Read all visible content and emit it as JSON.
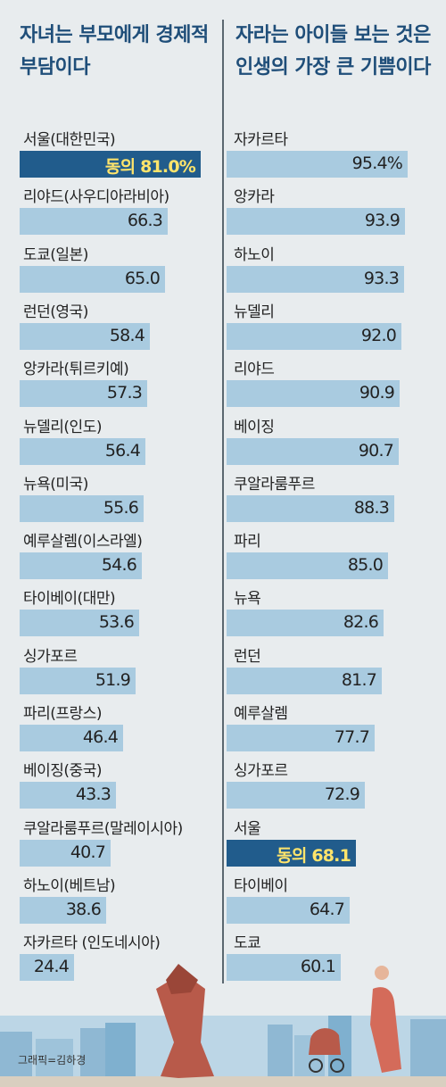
{
  "chart_data": [
    {
      "type": "bar",
      "title": "자녀는 부모에게 경제적 부담이다",
      "categories": [
        "서울(대한민국)",
        "리야드(사우디아라비아)",
        "도쿄(일본)",
        "런던(영국)",
        "앙카라(튀르키예)",
        "뉴델리(인도)",
        "뉴욕(미국)",
        "예루살렘(이스라엘)",
        "타이베이(대만)",
        "싱가포르",
        "파리(프랑스)",
        "베이징(중국)",
        "쿠알라룸푸르(말레이시아)",
        "하노이(베트남)",
        "자카르타 (인도네시아)"
      ],
      "values": [
        81.0,
        66.3,
        65.0,
        58.4,
        57.3,
        56.4,
        55.6,
        54.6,
        53.6,
        51.9,
        46.4,
        43.3,
        40.7,
        38.6,
        24.4
      ],
      "value_labels": [
        "동의 81.0%",
        "66.3",
        "65.0",
        "58.4",
        "57.3",
        "56.4",
        "55.6",
        "54.6",
        "53.6",
        "51.9",
        "46.4",
        "43.3",
        "40.7",
        "38.6",
        "24.4"
      ],
      "highlight_index": 0,
      "xlim": [
        0,
        100
      ],
      "color": "#a9cbe0",
      "highlight_color": "#215c8c",
      "highlight_text_color": "#ffe46b"
    },
    {
      "type": "bar",
      "title": "자라는 아이들 보는 것은 인생의 가장 큰 기쁨이다",
      "categories": [
        "자카르타",
        "앙카라",
        "하노이",
        "뉴델리",
        "리야드",
        "베이징",
        "쿠알라룸푸르",
        "파리",
        "뉴욕",
        "런던",
        "예루살렘",
        "싱가포르",
        "서울",
        "타이베이",
        "도쿄"
      ],
      "values": [
        95.4,
        93.9,
        93.3,
        92.0,
        90.9,
        90.7,
        88.3,
        85.0,
        82.6,
        81.7,
        77.7,
        72.9,
        68.1,
        64.7,
        60.1
      ],
      "value_labels": [
        "95.4%",
        "93.9",
        "93.3",
        "92.0",
        "90.9",
        "90.7",
        "88.3",
        "85.0",
        "82.6",
        "81.7",
        "77.7",
        "72.9",
        "동의 68.1",
        "64.7",
        "60.1"
      ],
      "highlight_index": 12,
      "xlim": [
        0,
        100
      ],
      "color": "#a9cbe0",
      "highlight_color": "#215c8c",
      "highlight_text_color": "#ffe46b"
    }
  ],
  "credit": "그래픽=김하경"
}
